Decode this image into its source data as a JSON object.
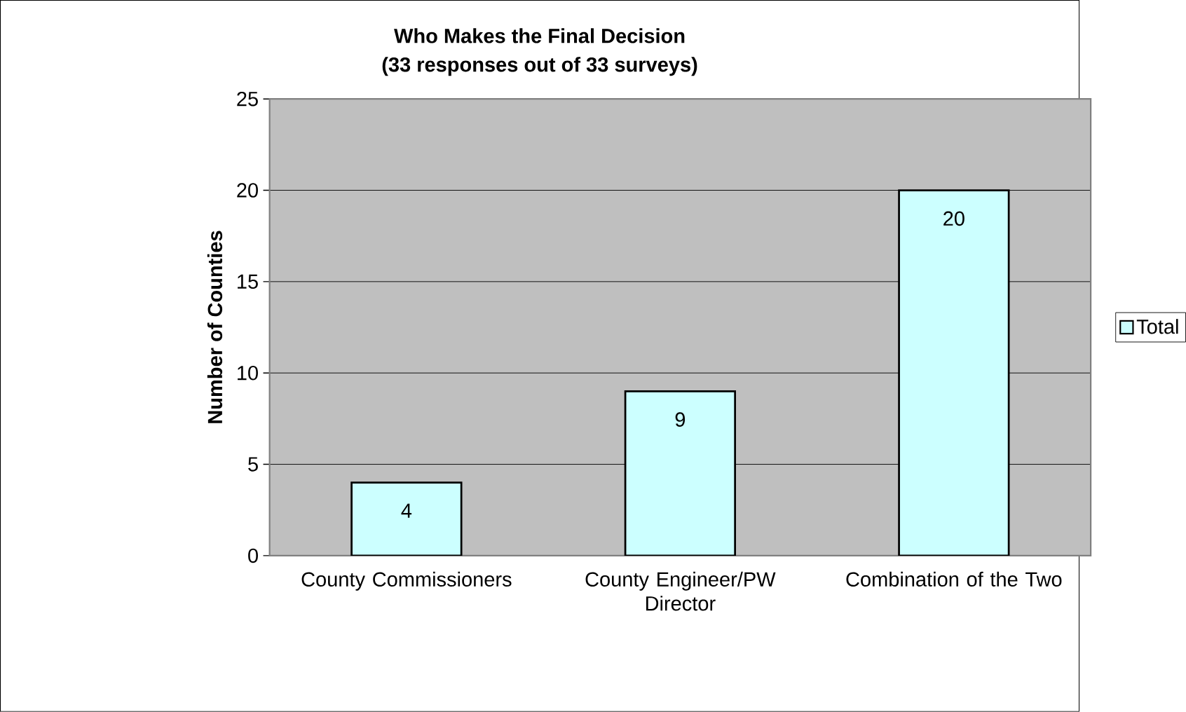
{
  "chart_data": {
    "type": "bar",
    "title": "Who Makes the Final Decision",
    "subtitle": "(33 responses out of 33 surveys)",
    "ylabel": "Number of Counties",
    "categories": [
      "County Commissioners",
      "County Engineer/PW Director",
      "Combination of the Two"
    ],
    "series": [
      {
        "name": "Total",
        "color": "#ccffff",
        "values": [
          4,
          9,
          20
        ]
      }
    ],
    "ylim": [
      0,
      25
    ],
    "yticks": [
      0,
      5,
      10,
      15,
      20,
      25
    ],
    "grid": "y",
    "legend": "right",
    "data_labels": true
  }
}
